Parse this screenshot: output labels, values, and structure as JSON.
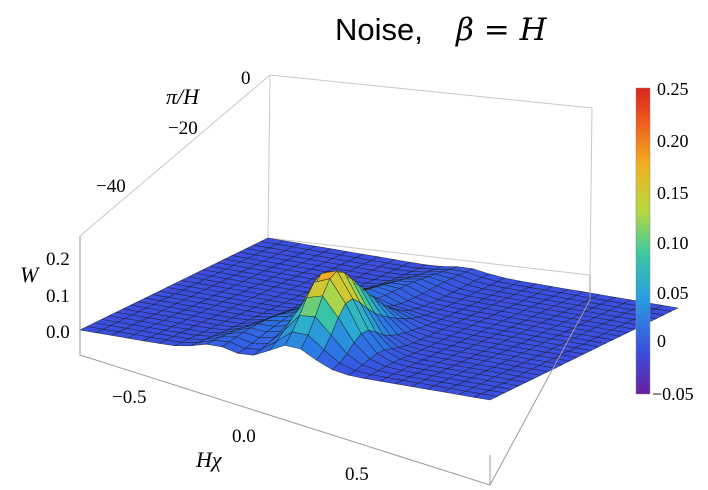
{
  "chart_data": {
    "type": "surface3d",
    "title": "Noise, ",
    "title_math": "β = H",
    "x_axis": {
      "label": "Hχ",
      "ticks": [
        "−0.5",
        "0.0",
        "0.5"
      ],
      "tick_values": [
        -0.5,
        0.0,
        0.5
      ],
      "range": [
        -0.75,
        0.75
      ]
    },
    "y_axis": {
      "label": "π/H",
      "ticks": [
        "0",
        "−20",
        "−40"
      ],
      "tick_values": [
        0,
        -20,
        -40
      ],
      "range": [
        -60,
        0
      ]
    },
    "z_axis": {
      "label": "W",
      "ticks": [
        "0.0",
        "0.1",
        "0.2"
      ],
      "tick_values": [
        0.0,
        0.1,
        0.2
      ],
      "range": [
        -0.05,
        0.28
      ]
    },
    "colorbar": {
      "ticks": [
        "0.25",
        "0.20",
        "0.15",
        "0.10",
        "0.05",
        "0",
        "−0.05"
      ],
      "tick_values": [
        0.25,
        0.2,
        0.15,
        0.1,
        0.05,
        0,
        -0.05
      ],
      "range": [
        -0.05,
        0.28
      ],
      "colors": [
        "#6a1fa0",
        "#3a4fe0",
        "#2aa0e0",
        "#3cc8a0",
        "#b8d840",
        "#f0b020",
        "#f06020",
        "#d8241c"
      ]
    },
    "surface": {
      "description_free": true,
      "peak": {
        "x": 0.0,
        "y": -46,
        "value": 0.27
      },
      "baseline": 0.0,
      "grid": "on"
    }
  }
}
